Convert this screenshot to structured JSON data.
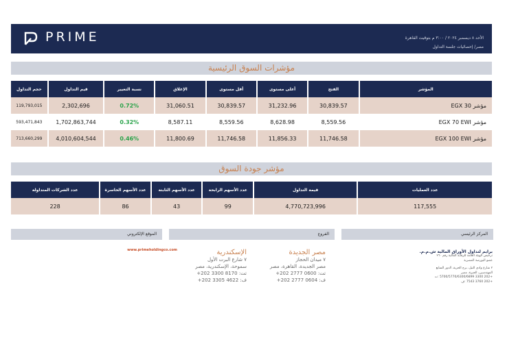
{
  "header": {
    "brand": "PRIME",
    "logo_icon": "prime-p-logo-icon",
    "date_line": "الأحد ٨ ديسمبر ٢٠٢٤ / ٣:٠٠ م بتوقيت القاهرة",
    "subtitle": "مصر/ إحصائيات جلسة التداول",
    "bg_color": "#1c2a52"
  },
  "indices": {
    "title": "مؤشرات السوق الرئيسية",
    "columns": [
      "المؤشر",
      "الفتح",
      "أعلى مستوى",
      "أقل مستوى",
      "الإغلاق",
      "نسبة التغيير",
      "قيم التداول",
      "حجم التداول"
    ],
    "rows": [
      {
        "name": "مؤشر EGX 30",
        "open": "30,839.57",
        "high": "31,232.96",
        "low": "30,839.57",
        "close": "31,060.51",
        "change": "0.72%",
        "value": "2,302,696",
        "volume": "119,793,015"
      },
      {
        "name": "مؤشر EGX 70 EWI",
        "open": "8,559.56",
        "high": "8,628.98",
        "low": "8,559.56",
        "close": "8,587.11",
        "change": "0.32%",
        "value": "1,702,863,744",
        "volume": "593,471,843"
      },
      {
        "name": "مؤشر EGX 100 EWI",
        "open": "11,746.58",
        "high": "11,856.33",
        "low": "11,746.58",
        "close": "11,800.69",
        "change": "0.46%",
        "value": "4,010,604,544",
        "volume": "713,660,299"
      }
    ]
  },
  "quality": {
    "title": "مؤشر جودة السوق",
    "columns": [
      "عدد العمليات",
      "قيمة التداول",
      "عدد الأسهم الرابحة",
      "عدد الأسهم الثابتة",
      "عدد الأسهم الخاسرة",
      "عدد الشركات المتداولة"
    ],
    "values": [
      "117,555",
      "4,770,723,996",
      "99",
      "43",
      "86",
      "228"
    ]
  },
  "footer": {
    "hq_label": "المركز الرئيسي",
    "branches_label": "الفروع",
    "website_label": "الموقع الإلكتروني",
    "website": "www.primeholdingco.com",
    "hq_lines": [
      "برايم لتداول الأوراق المالية ش.م.م.",
      "ترخيص الهيئة العامة للرقابة المالية رقم ٢٦٠",
      "عضو البورصة المصرية",
      "٢ شارع وادي النيل، برج الحرية، الدور السابع",
      "المهندسين، الجيزة، مصر",
      "+202 3300 5700/5770/6300/6899 :ت",
      "+202 3760 7543 :ف"
    ],
    "branch_cairo": {
      "name": "مصر الجديدة",
      "lines": [
        "٧ ميدان الحجاز",
        "مصر الجديدة، القاهرة، مصر",
        "تت: 0600 2777 202+",
        "ف: 0604 2777 202+"
      ]
    },
    "branch_alex": {
      "name": "الإسكندرية",
      "lines": [
        "٧ شارع البرت الأول",
        "سموحة، الإسكندرية، مصر",
        "تت: 8170 3300 202+",
        "ف: 4622 3305 202+"
      ]
    }
  }
}
